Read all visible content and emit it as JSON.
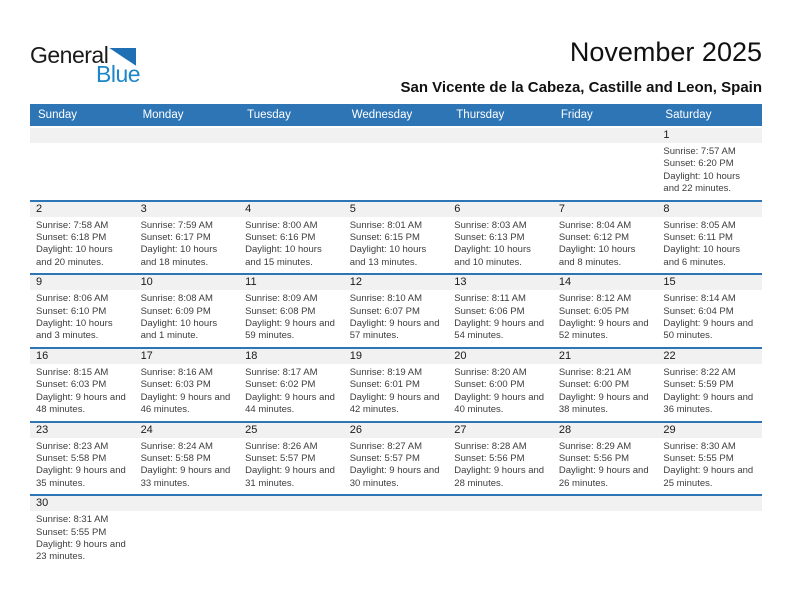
{
  "logo": {
    "word1": "General",
    "word2": "Blue"
  },
  "header": {
    "title": "November 2025",
    "subtitle": "San Vicente de la Cabeza, Castille and Leon, Spain"
  },
  "colors": {
    "header_blue": "#2E75B6",
    "week_line_blue": "#2E75B6",
    "number_band_gray": "#F1F1F1",
    "logo_blue": "#1D86C8",
    "logo_triangle_blue": "#1F6FB5"
  },
  "calendar": {
    "weekdays": [
      "Sunday",
      "Monday",
      "Tuesday",
      "Wednesday",
      "Thursday",
      "Friday",
      "Saturday"
    ],
    "weeks": [
      [
        null,
        null,
        null,
        null,
        null,
        null,
        {
          "day": "1",
          "sunrise": "Sunrise: 7:57 AM",
          "sunset": "Sunset: 6:20 PM",
          "daylight": "Daylight: 10 hours and 22 minutes."
        }
      ],
      [
        {
          "day": "2",
          "sunrise": "Sunrise: 7:58 AM",
          "sunset": "Sunset: 6:18 PM",
          "daylight": "Daylight: 10 hours and 20 minutes."
        },
        {
          "day": "3",
          "sunrise": "Sunrise: 7:59 AM",
          "sunset": "Sunset: 6:17 PM",
          "daylight": "Daylight: 10 hours and 18 minutes."
        },
        {
          "day": "4",
          "sunrise": "Sunrise: 8:00 AM",
          "sunset": "Sunset: 6:16 PM",
          "daylight": "Daylight: 10 hours and 15 minutes."
        },
        {
          "day": "5",
          "sunrise": "Sunrise: 8:01 AM",
          "sunset": "Sunset: 6:15 PM",
          "daylight": "Daylight: 10 hours and 13 minutes."
        },
        {
          "day": "6",
          "sunrise": "Sunrise: 8:03 AM",
          "sunset": "Sunset: 6:13 PM",
          "daylight": "Daylight: 10 hours and 10 minutes."
        },
        {
          "day": "7",
          "sunrise": "Sunrise: 8:04 AM",
          "sunset": "Sunset: 6:12 PM",
          "daylight": "Daylight: 10 hours and 8 minutes."
        },
        {
          "day": "8",
          "sunrise": "Sunrise: 8:05 AM",
          "sunset": "Sunset: 6:11 PM",
          "daylight": "Daylight: 10 hours and 6 minutes."
        }
      ],
      [
        {
          "day": "9",
          "sunrise": "Sunrise: 8:06 AM",
          "sunset": "Sunset: 6:10 PM",
          "daylight": "Daylight: 10 hours and 3 minutes."
        },
        {
          "day": "10",
          "sunrise": "Sunrise: 8:08 AM",
          "sunset": "Sunset: 6:09 PM",
          "daylight": "Daylight: 10 hours and 1 minute."
        },
        {
          "day": "11",
          "sunrise": "Sunrise: 8:09 AM",
          "sunset": "Sunset: 6:08 PM",
          "daylight": "Daylight: 9 hours and 59 minutes."
        },
        {
          "day": "12",
          "sunrise": "Sunrise: 8:10 AM",
          "sunset": "Sunset: 6:07 PM",
          "daylight": "Daylight: 9 hours and 57 minutes."
        },
        {
          "day": "13",
          "sunrise": "Sunrise: 8:11 AM",
          "sunset": "Sunset: 6:06 PM",
          "daylight": "Daylight: 9 hours and 54 minutes."
        },
        {
          "day": "14",
          "sunrise": "Sunrise: 8:12 AM",
          "sunset": "Sunset: 6:05 PM",
          "daylight": "Daylight: 9 hours and 52 minutes."
        },
        {
          "day": "15",
          "sunrise": "Sunrise: 8:14 AM",
          "sunset": "Sunset: 6:04 PM",
          "daylight": "Daylight: 9 hours and 50 minutes."
        }
      ],
      [
        {
          "day": "16",
          "sunrise": "Sunrise: 8:15 AM",
          "sunset": "Sunset: 6:03 PM",
          "daylight": "Daylight: 9 hours and 48 minutes."
        },
        {
          "day": "17",
          "sunrise": "Sunrise: 8:16 AM",
          "sunset": "Sunset: 6:03 PM",
          "daylight": "Daylight: 9 hours and 46 minutes."
        },
        {
          "day": "18",
          "sunrise": "Sunrise: 8:17 AM",
          "sunset": "Sunset: 6:02 PM",
          "daylight": "Daylight: 9 hours and 44 minutes."
        },
        {
          "day": "19",
          "sunrise": "Sunrise: 8:19 AM",
          "sunset": "Sunset: 6:01 PM",
          "daylight": "Daylight: 9 hours and 42 minutes."
        },
        {
          "day": "20",
          "sunrise": "Sunrise: 8:20 AM",
          "sunset": "Sunset: 6:00 PM",
          "daylight": "Daylight: 9 hours and 40 minutes."
        },
        {
          "day": "21",
          "sunrise": "Sunrise: 8:21 AM",
          "sunset": "Sunset: 6:00 PM",
          "daylight": "Daylight: 9 hours and 38 minutes."
        },
        {
          "day": "22",
          "sunrise": "Sunrise: 8:22 AM",
          "sunset": "Sunset: 5:59 PM",
          "daylight": "Daylight: 9 hours and 36 minutes."
        }
      ],
      [
        {
          "day": "23",
          "sunrise": "Sunrise: 8:23 AM",
          "sunset": "Sunset: 5:58 PM",
          "daylight": "Daylight: 9 hours and 35 minutes."
        },
        {
          "day": "24",
          "sunrise": "Sunrise: 8:24 AM",
          "sunset": "Sunset: 5:58 PM",
          "daylight": "Daylight: 9 hours and 33 minutes."
        },
        {
          "day": "25",
          "sunrise": "Sunrise: 8:26 AM",
          "sunset": "Sunset: 5:57 PM",
          "daylight": "Daylight: 9 hours and 31 minutes."
        },
        {
          "day": "26",
          "sunrise": "Sunrise: 8:27 AM",
          "sunset": "Sunset: 5:57 PM",
          "daylight": "Daylight: 9 hours and 30 minutes."
        },
        {
          "day": "27",
          "sunrise": "Sunrise: 8:28 AM",
          "sunset": "Sunset: 5:56 PM",
          "daylight": "Daylight: 9 hours and 28 minutes."
        },
        {
          "day": "28",
          "sunrise": "Sunrise: 8:29 AM",
          "sunset": "Sunset: 5:56 PM",
          "daylight": "Daylight: 9 hours and 26 minutes."
        },
        {
          "day": "29",
          "sunrise": "Sunrise: 8:30 AM",
          "sunset": "Sunset: 5:55 PM",
          "daylight": "Daylight: 9 hours and 25 minutes."
        }
      ],
      [
        {
          "day": "30",
          "sunrise": "Sunrise: 8:31 AM",
          "sunset": "Sunset: 5:55 PM",
          "daylight": "Daylight: 9 hours and 23 minutes."
        },
        null,
        null,
        null,
        null,
        null,
        null
      ]
    ]
  }
}
